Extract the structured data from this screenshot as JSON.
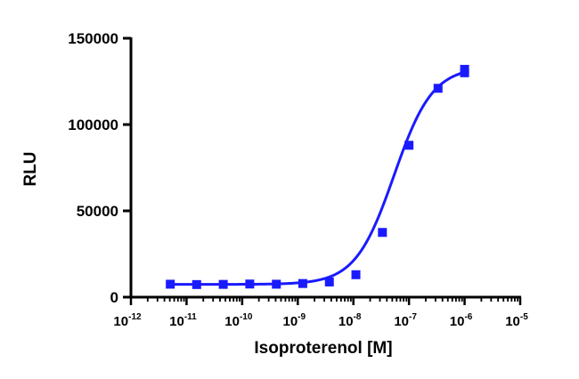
{
  "chart_data": {
    "type": "scatter",
    "title": "",
    "xlabel": "Isoproterenol [M]",
    "ylabel": "RLU",
    "x_scale": "log",
    "xlim": [
      1e-12,
      1e-05
    ],
    "ylim": [
      0,
      150000
    ],
    "x_ticks": [
      {
        "base": "10",
        "exp": "-12"
      },
      {
        "base": "10",
        "exp": "-11"
      },
      {
        "base": "10",
        "exp": "-10"
      },
      {
        "base": "10",
        "exp": "-9"
      },
      {
        "base": "10",
        "exp": "-8"
      },
      {
        "base": "10",
        "exp": "-7"
      },
      {
        "base": "10",
        "exp": "-6"
      },
      {
        "base": "10",
        "exp": "-5"
      }
    ],
    "y_ticks": [
      "0",
      "50000",
      "100000",
      "150000"
    ],
    "y_tick_values": [
      0,
      50000,
      100000,
      150000
    ],
    "grid": false,
    "legend": "none",
    "color": "#1a1aff",
    "marker": "square",
    "series": [
      {
        "x": [
          5.1e-12,
          1.52e-11,
          4.57e-11,
          1.37e-10,
          4.12e-10,
          1.23e-09,
          3.7e-09,
          1.11e-08,
          3.33e-08,
          1e-07,
          3.33e-07,
          1e-06,
          1e-06
        ],
        "y": [
          7500,
          7300,
          7400,
          7600,
          7500,
          7900,
          8800,
          13000,
          37500,
          88000,
          121000,
          130000,
          132000
        ]
      }
    ],
    "fit_curve": {
      "type": "sigmoidal",
      "bottom": 7400,
      "top": 133500,
      "log_ec50": -7.27,
      "hill": 1.25
    }
  }
}
